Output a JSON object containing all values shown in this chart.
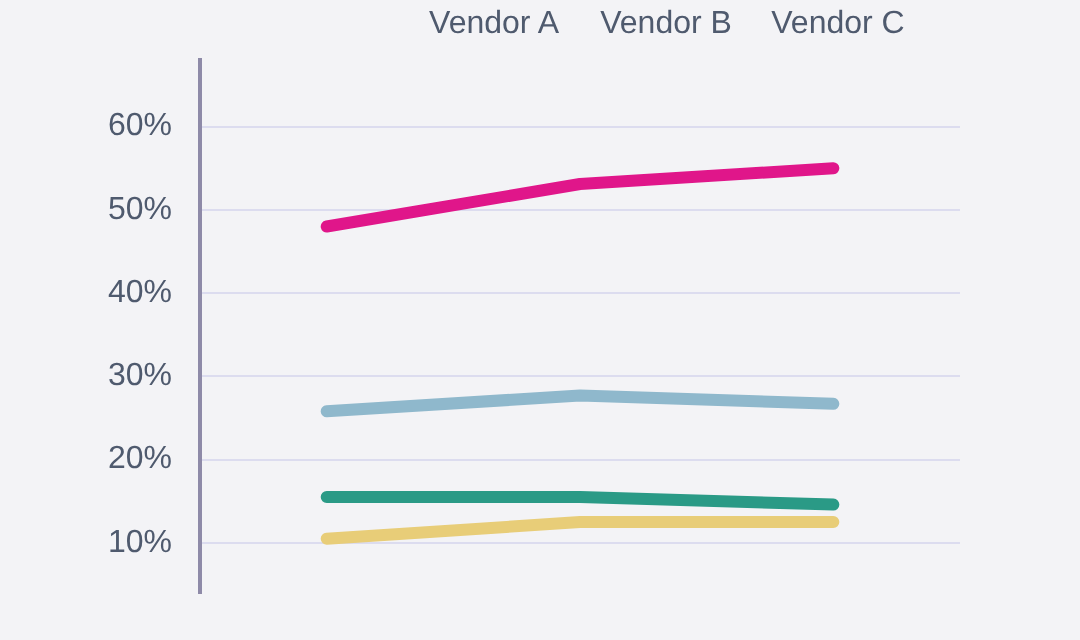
{
  "chart_data": {
    "type": "line",
    "categories": [
      null,
      null,
      null
    ],
    "annotations": [
      null,
      "Vendor A",
      "Vendor B",
      "Vendor C"
    ],
    "ylim": [
      4,
      68
    ],
    "yticks": [
      {
        "value": 10,
        "label": "10%"
      },
      {
        "value": 20,
        "label": "20%"
      },
      {
        "value": 30,
        "label": "30%"
      },
      {
        "value": 40,
        "label": "40%"
      },
      {
        "value": 50,
        "label": "50%"
      },
      {
        "value": 60,
        "label": "60%"
      }
    ],
    "grid": "y",
    "legend": false,
    "marker": "none",
    "line_style": "solid",
    "series": [
      {
        "color": "#e0168a",
        "values": [
          48.0,
          53.1,
          55.0
        ]
      },
      {
        "color": "#8fb8cc",
        "values": [
          25.8,
          27.7,
          26.7
        ]
      },
      {
        "color": "#2a9a86",
        "values": [
          15.5,
          15.5,
          14.6
        ]
      },
      {
        "color": "#e8cd78",
        "values": [
          10.5,
          12.5,
          12.5
        ]
      }
    ]
  }
}
